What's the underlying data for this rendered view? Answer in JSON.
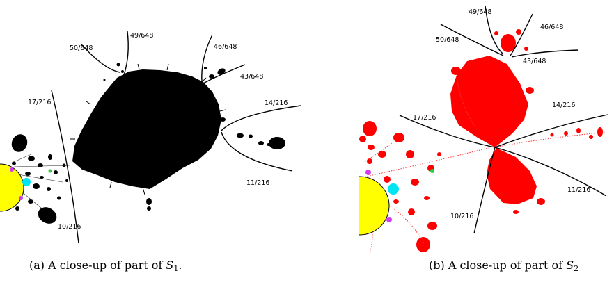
{
  "panel_a": {
    "caption": {
      "prefix": "(a) A close-up of part of ",
      "set_symbol": "S",
      "set_index": "1",
      "suffix": "."
    },
    "ray_labels": [
      "49/648",
      "50/648",
      "46/648",
      "43/648",
      "17/216",
      "14/216",
      "11/216",
      "10/216"
    ],
    "colors": {
      "set": "#000000",
      "main_disc": "#ffff00",
      "cyan": "#00e5f0",
      "magenta": "#d23cf0",
      "green": "#2ecc40"
    }
  },
  "panel_b": {
    "caption": {
      "prefix": "(b) A close-up of part of ",
      "set_symbol": "S",
      "set_index": "2",
      "suffix": ""
    },
    "ray_labels": [
      "49/648",
      "50/648",
      "46/648",
      "43/648",
      "17/216",
      "14/216",
      "11/216",
      "10/216"
    ],
    "colors": {
      "set": "#ff0000",
      "main_disc": "#ffff00",
      "cyan": "#00e5f0",
      "magenta": "#d23cf0",
      "green": "#2ecc40"
    }
  }
}
